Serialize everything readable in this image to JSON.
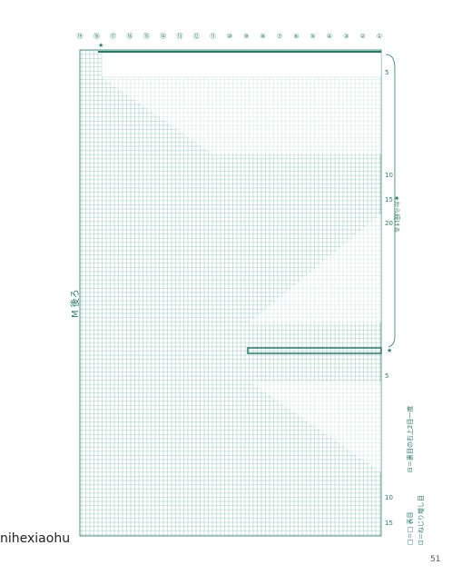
{
  "header": {
    "title": "M 後ろ",
    "note": "★から続ける"
  },
  "column_markers": [
    "⑲",
    "⑱",
    "⑰",
    "⑯",
    "⑮",
    "⑭",
    "⑬",
    "⑫",
    "⑪",
    "⑩",
    "⑨",
    "⑧",
    "⑦",
    "⑥",
    "⑤",
    "④",
    "③",
    "②",
    "①"
  ],
  "row_numbers_top": [
    "5",
    "10",
    "15",
    "20"
  ],
  "row_numbers_bottom": [
    "5",
    "10",
    "15"
  ],
  "star_marks": [
    "★",
    "★"
  ],
  "legend": [
    "□＝□ 表目",
    "⊡＝ねじり増し目",
    "⊟＝裏目の右上2目一度"
  ],
  "watermark": "nihexiaohu",
  "page_number": "51"
}
